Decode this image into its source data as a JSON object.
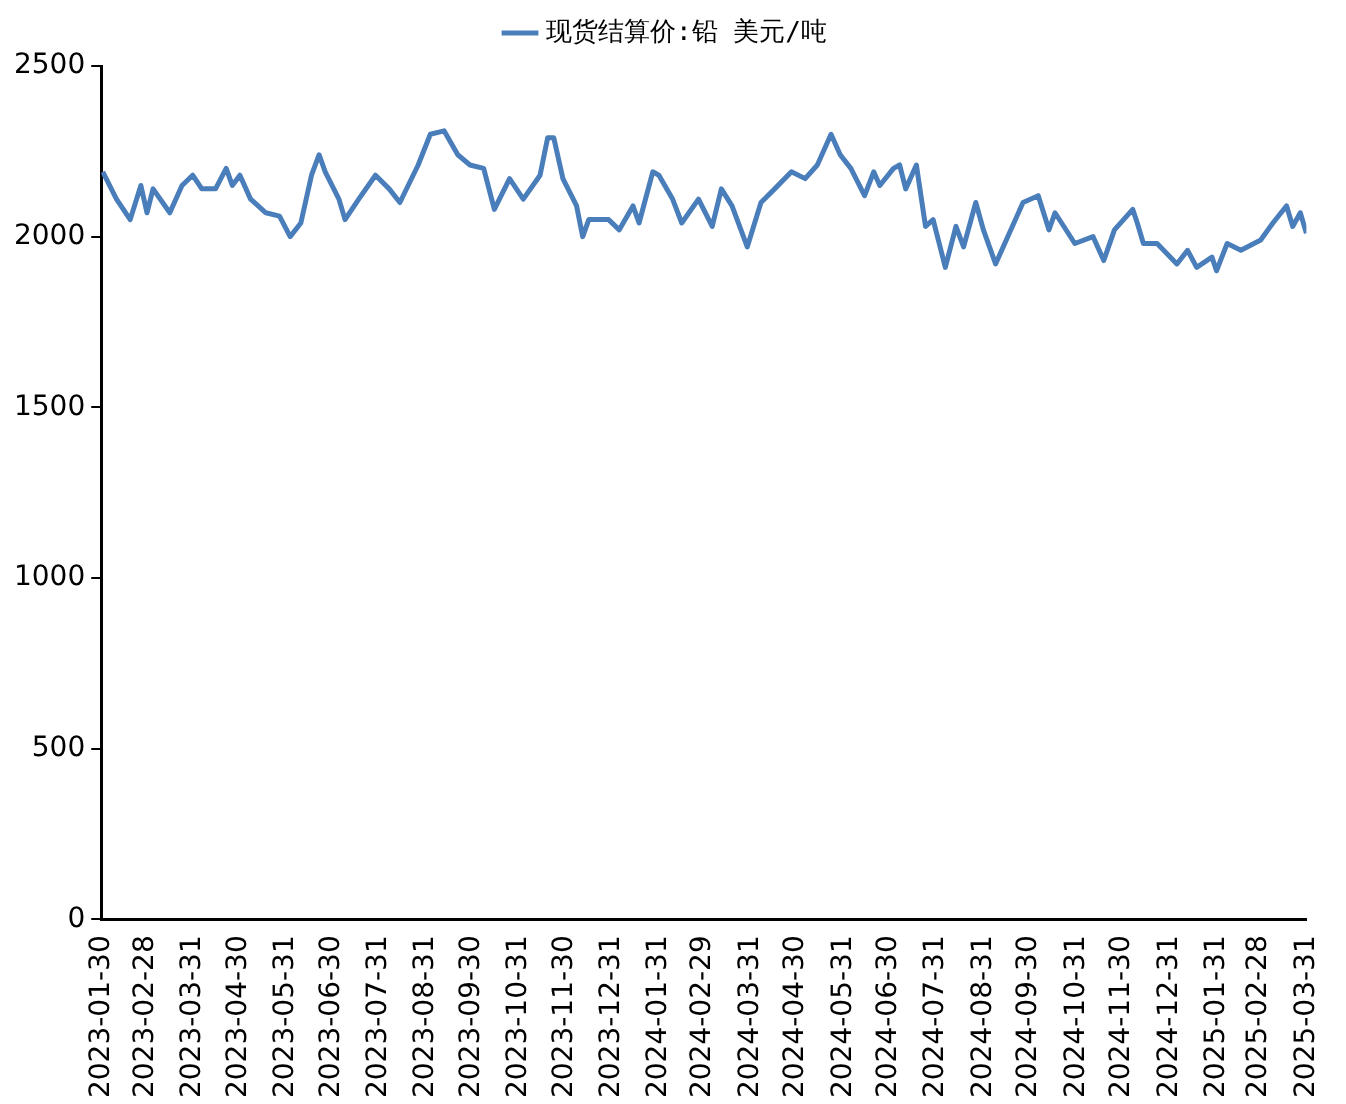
{
  "chart_data": {
    "type": "line",
    "legend": "top",
    "grid": false,
    "marker": "none",
    "line_style": "solid",
    "xlim": [
      "2023-01-30",
      "2025-03-31"
    ],
    "xticks": [
      "2023-01-30",
      "2023-02-28",
      "2023-03-31",
      "2023-04-30",
      "2023-05-31",
      "2023-06-30",
      "2023-07-31",
      "2023-08-31",
      "2023-09-30",
      "2023-10-31",
      "2023-11-30",
      "2023-12-31",
      "2024-01-31",
      "2024-02-29",
      "2024-03-31",
      "2024-04-30",
      "2024-05-31",
      "2024-06-30",
      "2024-07-31",
      "2024-08-31",
      "2024-09-30",
      "2024-10-31",
      "2024-11-30",
      "2024-12-31",
      "2025-01-31",
      "2025-02-28",
      "2025-03-31"
    ],
    "ylim": [
      0,
      2500
    ],
    "yticks": [
      0,
      500,
      1000,
      1500,
      2000,
      2500
    ],
    "series": [
      {
        "name": "现货结算价:铅 美元/吨",
        "color": "#4a7ebb",
        "x": [
          "2023-01-31",
          "2023-02-09",
          "2023-02-18",
          "2023-02-25",
          "2023-03-01",
          "2023-03-05",
          "2023-03-16",
          "2023-03-24",
          "2023-03-31",
          "2023-04-06",
          "2023-04-15",
          "2023-04-22",
          "2023-04-26",
          "2023-05-01",
          "2023-05-08",
          "2023-05-18",
          "2023-05-27",
          "2023-06-03",
          "2023-06-10",
          "2023-06-17",
          "2023-06-22",
          "2023-06-26",
          "2023-07-05",
          "2023-07-09",
          "2023-07-18",
          "2023-07-29",
          "2023-08-07",
          "2023-08-14",
          "2023-08-26",
          "2023-09-03",
          "2023-09-12",
          "2023-09-21",
          "2023-09-29",
          "2023-10-08",
          "2023-10-15",
          "2023-10-25",
          "2023-11-03",
          "2023-11-14",
          "2023-11-19",
          "2023-11-23",
          "2023-11-29",
          "2023-12-08",
          "2023-12-12",
          "2023-12-16",
          "2023-12-29",
          "2024-01-05",
          "2024-01-14",
          "2024-01-18",
          "2024-01-27",
          "2024-01-31",
          "2024-02-09",
          "2024-02-15",
          "2024-02-26",
          "2024-03-06",
          "2024-03-12",
          "2024-03-19",
          "2024-03-29",
          "2024-04-07",
          "2024-04-16",
          "2024-04-27",
          "2024-05-06",
          "2024-05-14",
          "2024-05-23",
          "2024-05-29",
          "2024-06-05",
          "2024-06-14",
          "2024-06-20",
          "2024-06-24",
          "2024-07-03",
          "2024-07-07",
          "2024-07-11",
          "2024-07-18",
          "2024-07-24",
          "2024-07-29",
          "2024-08-06",
          "2024-08-13",
          "2024-08-18",
          "2024-08-26",
          "2024-08-31",
          "2024-09-08",
          "2024-09-17",
          "2024-09-26",
          "2024-10-06",
          "2024-10-13",
          "2024-10-17",
          "2024-10-30",
          "2024-11-11",
          "2024-11-18",
          "2024-11-25",
          "2024-12-07",
          "2024-12-10",
          "2024-12-14",
          "2024-12-23",
          "2025-01-05",
          "2025-01-12",
          "2025-01-18",
          "2025-01-28",
          "2025-01-31",
          "2025-02-07",
          "2025-02-16",
          "2025-03-01",
          "2025-03-09",
          "2025-03-18",
          "2025-03-22",
          "2025-03-27",
          "2025-03-31"
        ],
        "values": [
          2190,
          2110,
          2050,
          2150,
          2070,
          2140,
          2070,
          2150,
          2180,
          2140,
          2140,
          2200,
          2150,
          2180,
          2110,
          2070,
          2060,
          2000,
          2040,
          2180,
          2240,
          2190,
          2110,
          2050,
          2110,
          2180,
          2140,
          2100,
          2210,
          2300,
          2310,
          2240,
          2210,
          2200,
          2080,
          2170,
          2110,
          2180,
          2290,
          2290,
          2170,
          2090,
          2000,
          2050,
          2050,
          2020,
          2090,
          2040,
          2190,
          2180,
          2110,
          2040,
          2110,
          2030,
          2140,
          2090,
          1970,
          2100,
          2140,
          2190,
          2170,
          2210,
          2300,
          2240,
          2200,
          2120,
          2190,
          2150,
          2200,
          2210,
          2140,
          2210,
          2030,
          2050,
          1910,
          2030,
          1970,
          2100,
          2020,
          1920,
          2010,
          2100,
          2120,
          2020,
          2070,
          1980,
          2000,
          1930,
          2020,
          2080,
          2040,
          1980,
          1980,
          1920,
          1960,
          1910,
          1940,
          1900,
          1980,
          1960,
          1990,
          2040,
          2090,
          2030,
          2070,
          2010
        ]
      }
    ]
  }
}
